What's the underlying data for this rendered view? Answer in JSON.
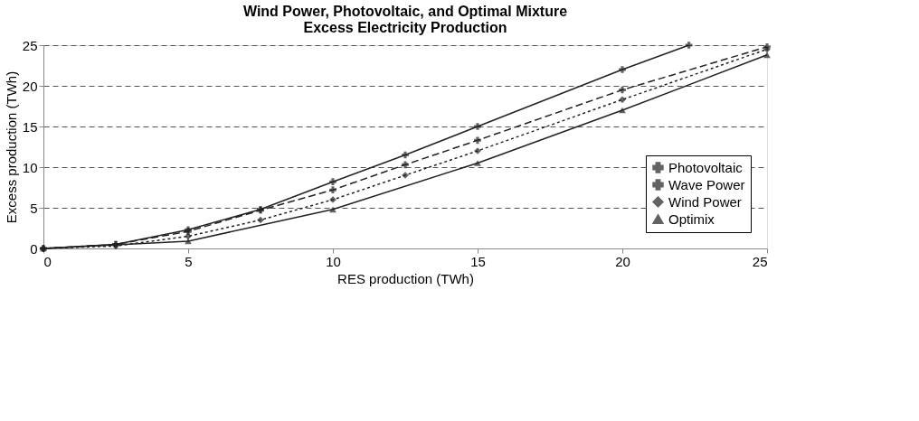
{
  "chart_data": {
    "type": "line",
    "title": [
      "Wind Power, Photovoltaic, and Optimal Mixture",
      "Excess Electricity Production"
    ],
    "xlabel": "RES production (TWh)",
    "ylabel": "Excess production (TWh)",
    "series": [
      {
        "name": "Photovoltaic",
        "color": "#222222",
        "marker": "cross",
        "line_style": "solid",
        "x": [
          0,
          2.5,
          5,
          7.5,
          10,
          12.5,
          15,
          20,
          22.3
        ],
        "values": [
          0,
          0.5,
          2.3,
          4.8,
          8.2,
          11.5,
          15,
          22,
          25
        ]
      },
      {
        "name": "Wave Power",
        "color": "#222222",
        "marker": "cross",
        "line_style": "dashed",
        "x": [
          0,
          2.5,
          5,
          7.5,
          10,
          12.5,
          15,
          20,
          25
        ],
        "values": [
          0,
          0.5,
          2.1,
          4.7,
          7.2,
          10.3,
          13.3,
          19.5,
          24.8
        ]
      },
      {
        "name": "Wind Power",
        "color": "#222222",
        "marker": "diamond",
        "line_style": "dotted",
        "x": [
          0,
          2.5,
          5,
          7.5,
          10,
          12.5,
          15,
          20,
          25
        ],
        "values": [
          0,
          0.3,
          1.5,
          3.5,
          6.0,
          9.0,
          12.0,
          18.3,
          24.5
        ]
      },
      {
        "name": "Optimix",
        "color": "#222222",
        "marker": "triangle",
        "line_style": "solid",
        "x": [
          0,
          5,
          10,
          15,
          20,
          25
        ],
        "values": [
          0,
          0.9,
          4.8,
          10.5,
          17,
          23.8
        ]
      }
    ],
    "xlim": [
      0,
      25
    ],
    "xticks": [
      0,
      5,
      10,
      15,
      20,
      25
    ],
    "ylim": [
      0,
      25
    ],
    "yticks": [
      0,
      5,
      10,
      15,
      20,
      25
    ],
    "grid": "y",
    "legend": "bottom right"
  }
}
